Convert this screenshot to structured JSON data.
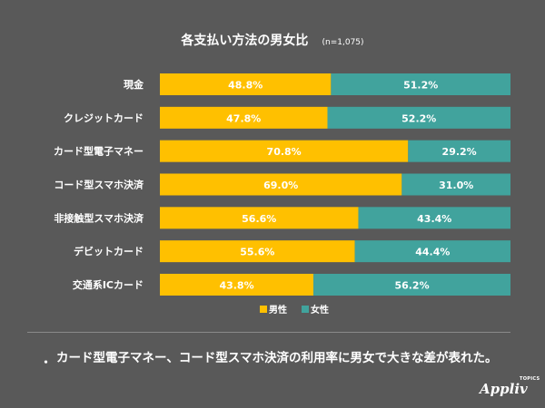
{
  "chart_data": {
    "type": "bar",
    "orientation": "horizontal",
    "stacked": true,
    "percent": true,
    "title": "各支払い方法の男女比",
    "subtitle": "(n=1,075)",
    "categories": [
      "現金",
      "クレジットカード",
      "カード型電子マネー",
      "コード型スマホ決済",
      "非接触型スマホ決済",
      "デビットカード",
      "交通系ICカード"
    ],
    "series": [
      {
        "name": "男性",
        "color": "#ffc000",
        "values": [
          48.8,
          47.8,
          70.8,
          69.0,
          56.6,
          55.6,
          43.8
        ],
        "labels": [
          "48.8%",
          "47.8%",
          "70.8%",
          "69.0%",
          "56.6%",
          "55.6%",
          "43.8%"
        ]
      },
      {
        "name": "女性",
        "color": "#41a39d",
        "values": [
          51.2,
          52.2,
          29.2,
          31.0,
          43.4,
          44.4,
          56.2
        ],
        "labels": [
          "51.2%",
          "52.2%",
          "29.2%",
          "31.0%",
          "43.4%",
          "44.4%",
          "56.2%"
        ]
      }
    ],
    "xlim": [
      0,
      100
    ],
    "grid": false,
    "legend": "bottom"
  },
  "note": {
    "bullet": "・",
    "text": "カード型電子マネー、コード型スマホ決済の利用率に男女で大きな差が表れた。"
  },
  "logo": {
    "name": "Appliv",
    "sub": "TOPICS"
  }
}
